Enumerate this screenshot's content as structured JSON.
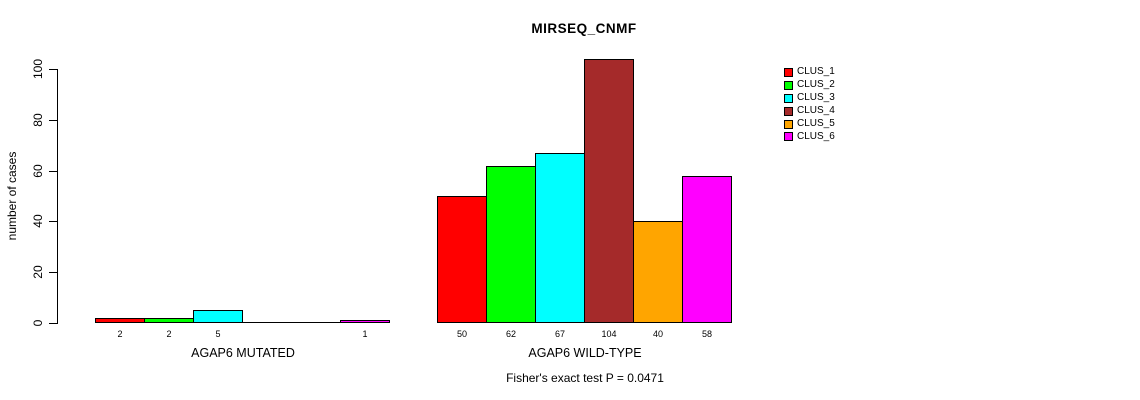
{
  "chart_data": {
    "type": "bar",
    "title": "MIRSEQ_CNMF",
    "ylabel": "number of cases",
    "xlabel": "",
    "ylim": [
      0,
      100
    ],
    "yticks": [
      0,
      20,
      40,
      60,
      80,
      100
    ],
    "grid": false,
    "legend_position": "right",
    "bar_border_color": "#000000",
    "series": [
      {
        "name": "CLUS_1",
        "color": "#ff0000"
      },
      {
        "name": "CLUS_2",
        "color": "#00ff00"
      },
      {
        "name": "CLUS_3",
        "color": "#00ffff"
      },
      {
        "name": "CLUS_4",
        "color": "#a52a2a"
      },
      {
        "name": "CLUS_5",
        "color": "#ffa500"
      },
      {
        "name": "CLUS_6",
        "color": "#ff00ff"
      }
    ],
    "groups": [
      {
        "label": "AGAP6 MUTATED",
        "values": [
          2,
          2,
          5,
          0,
          0,
          1
        ]
      },
      {
        "label": "AGAP6 WILD-TYPE",
        "values": [
          50,
          62,
          67,
          104,
          40,
          58
        ]
      }
    ],
    "show_bar_value_labels": true,
    "hide_zero_value_labels": true,
    "footnote": "Fisher's exact test P = 0.0471"
  }
}
